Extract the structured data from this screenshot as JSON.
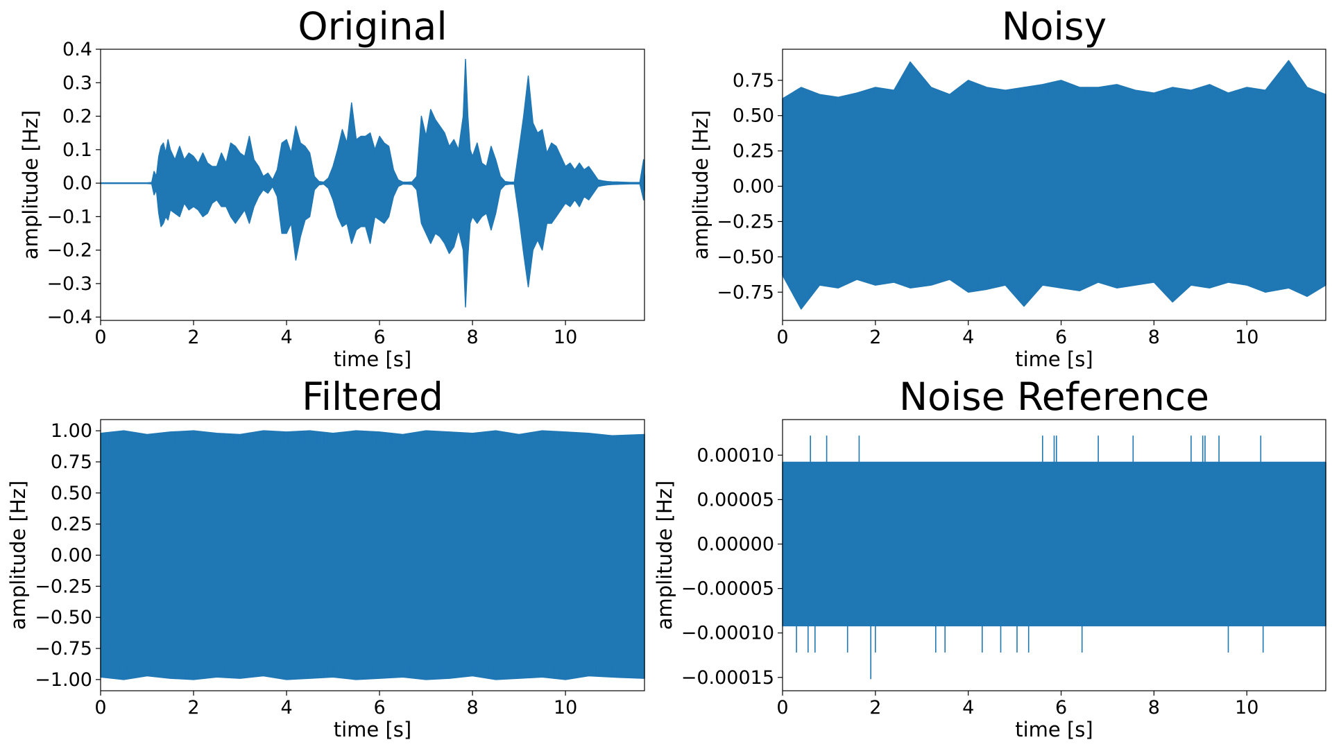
{
  "figure": {
    "background": "#ffffff",
    "line_color": "#1f77b4"
  },
  "chart_data": [
    {
      "type": "line",
      "title": "Original",
      "xlabel": "time [s]",
      "ylabel": "amplitude [Hz]",
      "xlim": [
        0,
        11.7
      ],
      "ylim": [
        -0.41,
        0.4
      ],
      "xticks": [
        0,
        2,
        4,
        6,
        8,
        10
      ],
      "xtick_labels": [
        "0",
        "2",
        "4",
        "6",
        "8",
        "10"
      ],
      "yticks": [
        -0.4,
        -0.3,
        -0.2,
        -0.1,
        0.0,
        0.1,
        0.2,
        0.3,
        0.4
      ],
      "ytick_labels": [
        "−0.4",
        "−0.3",
        "−0.2",
        "−0.1",
        "0.0",
        "0.1",
        "0.2",
        "0.3",
        "0.4"
      ],
      "grid": false,
      "series": [
        {
          "x": [
            0,
            0.5,
            1.0,
            1.1,
            1.15,
            1.2,
            1.25,
            1.3,
            1.35,
            1.4,
            1.45,
            1.5,
            1.6,
            1.7,
            1.8,
            1.9,
            2.0,
            2.1,
            2.2,
            2.3,
            2.4,
            2.5,
            2.6,
            2.7,
            2.8,
            2.9,
            3.0,
            3.1,
            3.2,
            3.3,
            3.4,
            3.5,
            3.6,
            3.7,
            3.8,
            3.9,
            4.0,
            4.1,
            4.2,
            4.3,
            4.4,
            4.5,
            4.6,
            4.7,
            4.8,
            4.9,
            5.0,
            5.1,
            5.2,
            5.3,
            5.4,
            5.5,
            5.6,
            5.7,
            5.8,
            5.9,
            6.0,
            6.1,
            6.2,
            6.3,
            6.4,
            6.5,
            6.6,
            6.7,
            6.8,
            6.9,
            7.0,
            7.1,
            7.2,
            7.3,
            7.4,
            7.5,
            7.6,
            7.7,
            7.8,
            7.85,
            7.9,
            7.95,
            8.0,
            8.1,
            8.2,
            8.3,
            8.4,
            8.5,
            8.6,
            8.7,
            8.8,
            8.9,
            9.0,
            9.1,
            9.2,
            9.3,
            9.4,
            9.5,
            9.6,
            9.7,
            9.8,
            9.9,
            10.0,
            10.1,
            10.2,
            10.3,
            10.4,
            10.5,
            10.6,
            10.7,
            10.8,
            10.9,
            11.0,
            11.2,
            11.4,
            11.6,
            11.68,
            11.7
          ],
          "upper": [
            0.001,
            0.001,
            0.001,
            0.002,
            0.035,
            0.02,
            0.08,
            0.11,
            0.12,
            0.09,
            0.13,
            0.1,
            0.07,
            0.11,
            0.07,
            0.09,
            0.08,
            0.06,
            0.09,
            0.06,
            0.05,
            0.05,
            0.09,
            0.06,
            0.12,
            0.11,
            0.09,
            0.08,
            0.14,
            0.07,
            0.05,
            0.02,
            0.03,
            0.01,
            0.04,
            0.12,
            0.13,
            0.09,
            0.17,
            0.12,
            0.11,
            0.09,
            0.02,
            0.005,
            0.003,
            0.015,
            0.05,
            0.1,
            0.16,
            0.12,
            0.24,
            0.13,
            0.14,
            0.14,
            0.15,
            0.1,
            0.14,
            0.12,
            0.11,
            0.04,
            0.01,
            0.003,
            0.003,
            0.004,
            0.02,
            0.2,
            0.14,
            0.22,
            0.19,
            0.17,
            0.15,
            0.11,
            0.13,
            0.1,
            0.2,
            0.37,
            0.2,
            0.1,
            0.08,
            0.12,
            0.06,
            0.05,
            0.11,
            0.07,
            0.02,
            0.005,
            0.003,
            0.003,
            0.1,
            0.2,
            0.32,
            0.18,
            0.15,
            0.16,
            0.09,
            0.12,
            0.11,
            0.08,
            0.05,
            0.06,
            0.04,
            0.06,
            0.04,
            0.05,
            0.03,
            0.01,
            0.007,
            0.005,
            0.004,
            0.003,
            0.002,
            0.002,
            0.07,
            0.02
          ],
          "lower": [
            -0.001,
            -0.001,
            -0.001,
            -0.002,
            -0.035,
            -0.02,
            -0.09,
            -0.13,
            -0.12,
            -0.1,
            -0.11,
            -0.08,
            -0.09,
            -0.1,
            -0.06,
            -0.08,
            -0.07,
            -0.08,
            -0.1,
            -0.09,
            -0.06,
            -0.05,
            -0.07,
            -0.07,
            -0.1,
            -0.12,
            -0.1,
            -0.08,
            -0.12,
            -0.07,
            -0.04,
            -0.02,
            -0.03,
            -0.01,
            -0.04,
            -0.15,
            -0.15,
            -0.12,
            -0.23,
            -0.16,
            -0.11,
            -0.1,
            -0.02,
            -0.005,
            -0.003,
            -0.015,
            -0.05,
            -0.1,
            -0.13,
            -0.12,
            -0.18,
            -0.14,
            -0.13,
            -0.13,
            -0.18,
            -0.1,
            -0.11,
            -0.12,
            -0.1,
            -0.04,
            -0.01,
            -0.003,
            -0.003,
            -0.004,
            -0.02,
            -0.12,
            -0.15,
            -0.18,
            -0.15,
            -0.16,
            -0.18,
            -0.21,
            -0.19,
            -0.14,
            -0.2,
            -0.37,
            -0.22,
            -0.12,
            -0.1,
            -0.12,
            -0.1,
            -0.09,
            -0.14,
            -0.09,
            -0.02,
            -0.005,
            -0.003,
            -0.003,
            -0.1,
            -0.21,
            -0.31,
            -0.2,
            -0.17,
            -0.2,
            -0.12,
            -0.12,
            -0.1,
            -0.08,
            -0.06,
            -0.07,
            -0.05,
            -0.07,
            -0.04,
            -0.05,
            -0.03,
            -0.01,
            -0.007,
            -0.005,
            -0.004,
            -0.003,
            -0.002,
            -0.002,
            -0.05,
            -0.02
          ]
        }
      ]
    },
    {
      "type": "line",
      "title": "Noisy",
      "xlabel": "time [s]",
      "ylabel": "amplitude [Hz]",
      "xlim": [
        0,
        11.7
      ],
      "ylim": [
        -0.95,
        0.97
      ],
      "xticks": [
        0,
        2,
        4,
        6,
        8,
        10
      ],
      "xtick_labels": [
        "0",
        "2",
        "4",
        "6",
        "8",
        "10"
      ],
      "yticks": [
        -0.75,
        -0.5,
        -0.25,
        0.0,
        0.25,
        0.5,
        0.75
      ],
      "ytick_labels": [
        "−0.75",
        "−0.50",
        "−0.25",
        "0.00",
        "0.25",
        "0.50",
        "0.75"
      ],
      "grid": false,
      "series": [
        {
          "x": [
            0,
            0.4,
            0.8,
            1.2,
            1.6,
            2.0,
            2.4,
            2.75,
            3.2,
            3.6,
            4.0,
            4.4,
            4.8,
            5.2,
            5.6,
            6.0,
            6.4,
            6.8,
            7.2,
            7.6,
            8.0,
            8.4,
            8.8,
            9.2,
            9.6,
            10.0,
            10.4,
            10.9,
            11.3,
            11.7
          ],
          "upper": [
            0.62,
            0.7,
            0.65,
            0.63,
            0.66,
            0.7,
            0.68,
            0.88,
            0.7,
            0.65,
            0.75,
            0.7,
            0.68,
            0.7,
            0.72,
            0.75,
            0.7,
            0.7,
            0.72,
            0.68,
            0.66,
            0.7,
            0.68,
            0.72,
            0.66,
            0.7,
            0.68,
            0.89,
            0.7,
            0.65
          ],
          "lower": [
            -0.63,
            -0.87,
            -0.7,
            -0.72,
            -0.66,
            -0.7,
            -0.68,
            -0.72,
            -0.7,
            -0.66,
            -0.75,
            -0.73,
            -0.7,
            -0.85,
            -0.7,
            -0.72,
            -0.74,
            -0.68,
            -0.72,
            -0.7,
            -0.68,
            -0.82,
            -0.7,
            -0.72,
            -0.68,
            -0.7,
            -0.75,
            -0.72,
            -0.78,
            -0.7
          ]
        }
      ]
    },
    {
      "type": "line",
      "title": "Filtered",
      "xlabel": "time [s]",
      "ylabel": "amplitude [Hz]",
      "xlim": [
        0,
        11.7
      ],
      "ylim": [
        -1.09,
        1.09
      ],
      "xticks": [
        0,
        2,
        4,
        6,
        8,
        10
      ],
      "xtick_labels": [
        "0",
        "2",
        "4",
        "6",
        "8",
        "10"
      ],
      "yticks": [
        -1.0,
        -0.75,
        -0.5,
        -0.25,
        0.0,
        0.25,
        0.5,
        0.75,
        1.0
      ],
      "ytick_labels": [
        "−1.00",
        "−0.75",
        "−0.50",
        "−0.25",
        "0.00",
        "0.25",
        "0.50",
        "0.75",
        "1.00"
      ],
      "grid": false,
      "series": [
        {
          "x": [
            0,
            0.5,
            1.0,
            1.5,
            2.0,
            2.5,
            3.0,
            3.5,
            4.0,
            4.5,
            5.0,
            5.5,
            6.0,
            6.5,
            7.0,
            7.5,
            8.0,
            8.5,
            9.0,
            9.5,
            10.0,
            10.5,
            11.0,
            11.7
          ],
          "upper": [
            0.98,
            1.0,
            0.97,
            0.99,
            1.0,
            0.98,
            0.97,
            1.0,
            0.99,
            1.0,
            0.98,
            1.0,
            0.99,
            0.97,
            1.0,
            0.99,
            0.98,
            1.0,
            0.97,
            1.0,
            0.99,
            0.98,
            0.96,
            0.97
          ],
          "lower": [
            -0.98,
            -1.0,
            -0.97,
            -0.99,
            -1.0,
            -0.98,
            -0.99,
            -0.97,
            -1.0,
            -0.99,
            -0.98,
            -1.0,
            -0.99,
            -0.98,
            -1.0,
            -0.99,
            -0.97,
            -1.0,
            -0.99,
            -0.98,
            -1.0,
            -0.97,
            -0.98,
            -0.99
          ]
        }
      ]
    },
    {
      "type": "line",
      "title": "Noise Reference",
      "xlabel": "time [s]",
      "ylabel": "amplitude [Hz]",
      "xlim": [
        0,
        11.7
      ],
      "ylim": [
        -0.000165,
        0.00014
      ],
      "xticks": [
        0,
        2,
        4,
        6,
        8,
        10
      ],
      "xtick_labels": [
        "0",
        "2",
        "4",
        "6",
        "8",
        "10"
      ],
      "yticks": [
        -0.00015,
        -0.0001,
        -5e-05,
        0.0,
        5e-05,
        0.0001
      ],
      "ytick_labels": [
        "−0.00015",
        "−0.00010",
        "−0.00005",
        "0.00000",
        "0.00005",
        "0.00010"
      ],
      "grid": false,
      "series": [
        {
          "x": [
            0,
            11.7
          ],
          "upper": [
            9.2e-05,
            9.2e-05
          ],
          "lower": [
            -9.2e-05,
            -9.2e-05
          ],
          "upper_spikes": [
            0.6,
            0.95,
            1.65,
            5.6,
            5.85,
            5.9,
            6.8,
            7.55,
            8.8,
            9.05,
            9.1,
            9.4,
            10.3
          ],
          "upper_spike_value": 0.000122,
          "lower_spikes": [
            0.3,
            0.55,
            0.7,
            1.4,
            2.0,
            3.3,
            3.5,
            4.3,
            4.7,
            5.05,
            5.3,
            6.45,
            9.6,
            10.35
          ],
          "lower_spike_value": -0.000122,
          "lower_peak": [
            1.9,
            -0.000152
          ]
        }
      ]
    }
  ]
}
